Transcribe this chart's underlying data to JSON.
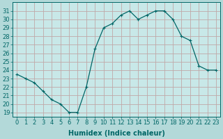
{
  "x": [
    0,
    1,
    2,
    3,
    4,
    5,
    6,
    7,
    8,
    9,
    10,
    11,
    12,
    13,
    14,
    15,
    16,
    17,
    18,
    19,
    20,
    21,
    22,
    23
  ],
  "y": [
    23.5,
    23.0,
    22.5,
    21.5,
    20.5,
    20.0,
    19.0,
    19.0,
    22.0,
    26.5,
    29.0,
    29.5,
    30.5,
    31.0,
    30.0,
    30.5,
    31.0,
    31.0,
    30.0,
    28.0,
    27.5,
    24.5,
    24.0,
    24.0
  ],
  "line_color": "#006666",
  "marker": "+",
  "bg_color": "#b3d9d9",
  "plot_bg_color": "#c8e8e8",
  "grid_color": "#c0a8a8",
  "xlabel": "Humidex (Indice chaleur)",
  "ylabel_ticks": [
    19,
    20,
    21,
    22,
    23,
    24,
    25,
    26,
    27,
    28,
    29,
    30,
    31
  ],
  "ylim": [
    18.5,
    32.0
  ],
  "xlim": [
    -0.5,
    23.5
  ],
  "tick_color": "#006666",
  "label_fontsize": 7,
  "tick_fontsize": 6
}
